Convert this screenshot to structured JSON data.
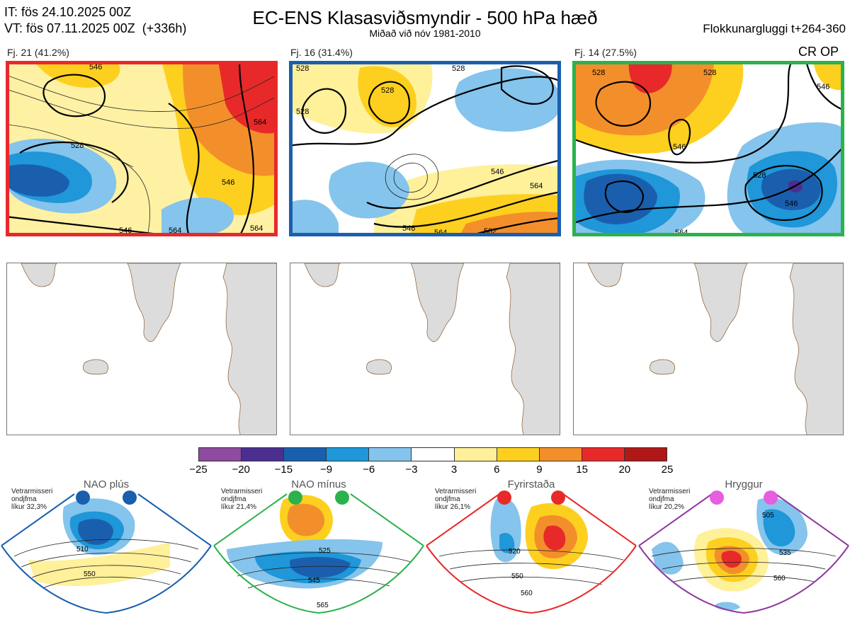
{
  "header": {
    "it_line": "IT: fös 24.10.2025 00Z",
    "vt_line": "VT: fös 07.11.2025 00Z  (+336h)",
    "title": "EC-ENS Klasasviðsmyndir - 500 hPa hæð",
    "subtitle": "Miðað við nóv 1981-2010",
    "window": "Flokkunargluggi t+264-360",
    "legend_tag": "CR OP"
  },
  "panels": [
    {
      "label": "Fj. 21 (41.2%)",
      "border_color": "#e8292a",
      "contours": [
        "546",
        "564",
        "528",
        "546",
        "546",
        "564",
        "564"
      ]
    },
    {
      "label": "Fj. 16 (31.4%)",
      "border_color": "#1a5fae",
      "contours": [
        "528",
        "528",
        "528",
        "528",
        "546",
        "564",
        "546",
        "564",
        "582"
      ]
    },
    {
      "label": "Fj. 14 (27.5%)",
      "border_color": "#2bb24c",
      "contours": [
        "528",
        "546",
        "528",
        "546",
        "528",
        "546",
        "564"
      ]
    }
  ],
  "colorbar": {
    "ticks": [
      "−25",
      "−20",
      "−15",
      "−9",
      "−6",
      "−3",
      "3",
      "6",
      "9",
      "15",
      "20",
      "25"
    ],
    "colors": [
      "#8e4b9f",
      "#4a2f8f",
      "#1a5fae",
      "#1f97d9",
      "#85c4ec",
      "#ffffff",
      "#fff09a",
      "#fdd020",
      "#f38f2a",
      "#e8292a",
      "#b01818"
    ]
  },
  "regimes": [
    {
      "title": "NAO plús",
      "note_1": "Vetrarmisseri",
      "note_2": "ondjfma",
      "note_3": "líkur 32,3%",
      "color": "#1a5fae",
      "contours": [
        "510",
        "550"
      ]
    },
    {
      "title": "NAO mínus",
      "note_1": "Vetrarmisseri",
      "note_2": "ondjfma",
      "note_3": "líkur 21,4%",
      "color": "#2bb24c",
      "contours": [
        "525",
        "545",
        "565"
      ]
    },
    {
      "title": "Fyrirstaða",
      "note_1": "Vetrarmisseri",
      "note_2": "ondjfma",
      "note_3": "líkur 26,1%",
      "color": "#e8292a",
      "contours": [
        "520",
        "550",
        "560"
      ]
    },
    {
      "title": "Hryggur",
      "note_1": "Vetrarmisseri",
      "note_2": "ondjfma",
      "note_3": "líkur 20,2%",
      "color": "#e55fe0",
      "contours": [
        "505",
        "535",
        "560"
      ]
    }
  ]
}
